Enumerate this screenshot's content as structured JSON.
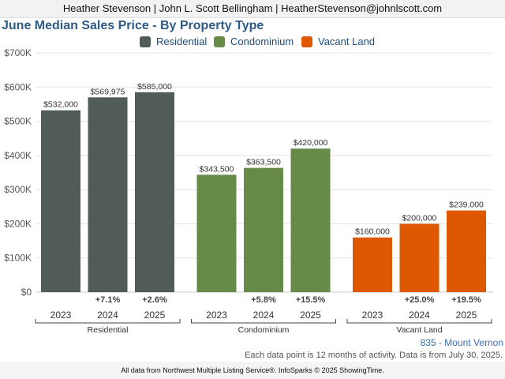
{
  "header": {
    "contact_line": "Heather Stevenson | John L. Scott Bellingham | HeatherStevenson@johnlscott.com"
  },
  "chart_data": {
    "type": "bar",
    "title": "June Median Sales Price - By Property Type",
    "groups": [
      {
        "name": "Residential",
        "color": "#515b59",
        "bars": [
          {
            "year": "2023",
            "value": 532000,
            "label": "$532,000",
            "change": ""
          },
          {
            "year": "2024",
            "value": 569975,
            "label": "$569,975",
            "change": "+7.1%"
          },
          {
            "year": "2025",
            "value": 585000,
            "label": "$585,000",
            "change": "+2.6%"
          }
        ]
      },
      {
        "name": "Condominium",
        "color": "#668a47",
        "bars": [
          {
            "year": "2023",
            "value": 343500,
            "label": "$343,500",
            "change": ""
          },
          {
            "year": "2024",
            "value": 363500,
            "label": "$363,500",
            "change": "+5.8%"
          },
          {
            "year": "2025",
            "value": 420000,
            "label": "$420,000",
            "change": "+15.5%"
          }
        ]
      },
      {
        "name": "Vacant Land",
        "color": "#dd5800",
        "bars": [
          {
            "year": "2023",
            "value": 160000,
            "label": "$160,000",
            "change": ""
          },
          {
            "year": "2024",
            "value": 200000,
            "label": "$200,000",
            "change": "+25.0%"
          },
          {
            "year": "2025",
            "value": 239000,
            "label": "$239,000",
            "change": "+19.5%"
          }
        ]
      }
    ],
    "yticks": [
      {
        "value": 0,
        "label": "$0"
      },
      {
        "value": 100000,
        "label": "$100K"
      },
      {
        "value": 200000,
        "label": "$200K"
      },
      {
        "value": 300000,
        "label": "$300K"
      },
      {
        "value": 400000,
        "label": "$400K"
      },
      {
        "value": 500000,
        "label": "$500K"
      },
      {
        "value": 600000,
        "label": "$600K"
      },
      {
        "value": 700000,
        "label": "$700K"
      }
    ],
    "ylim": [
      0,
      700000
    ],
    "grid": true,
    "legend": "top"
  },
  "footer": {
    "region": "835 - Mount Vernon",
    "note": "Each data point is 12 months of activity. Data is from July 30, 2025.",
    "source": "All data from Northwest Multiple Listing Service®. InfoSparks © 2025 ShowingTime."
  }
}
